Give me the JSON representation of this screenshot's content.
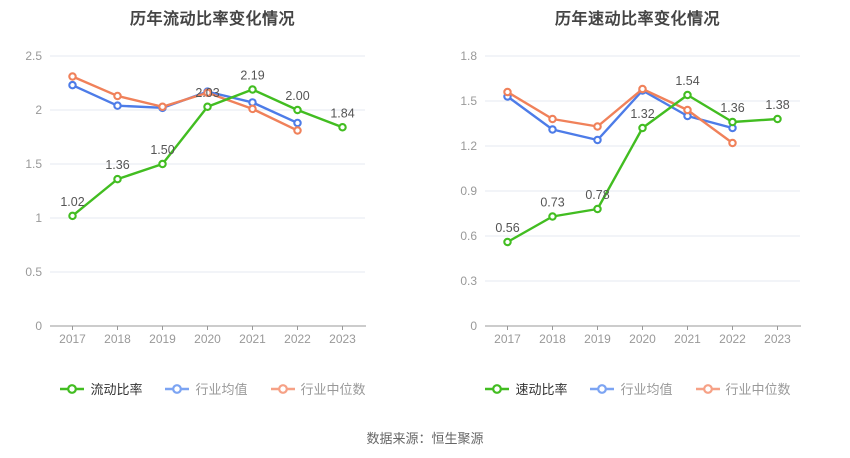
{
  "page": {
    "background": "#ffffff",
    "footer": "数据来源：恒生聚源"
  },
  "palette": {
    "green": "#42bd21",
    "blue": "#4d7ce8",
    "orange": "#f0815a",
    "legend_blue": "#7ca4f3",
    "legend_orange": "#f6a186",
    "grid": "#e4e8f1",
    "axis": "#999999",
    "tick_label": "#999999",
    "data_label": "#555555",
    "title": "#444444",
    "footer_text": "#666666",
    "legend_active_text": "#333333",
    "legend_muted_text": "#999999"
  },
  "chart_data": [
    {
      "type": "line",
      "title": "历年流动比率变化情况",
      "categories": [
        "2017",
        "2018",
        "2019",
        "2020",
        "2021",
        "2022",
        "2023"
      ],
      "ylim": [
        0,
        2.5
      ],
      "yticks": [
        {
          "value": 0,
          "label": "0"
        },
        {
          "value": 0.5,
          "label": "0.5"
        },
        {
          "value": 1,
          "label": "1"
        },
        {
          "value": 1.5,
          "label": "1.5"
        },
        {
          "value": 2,
          "label": "2"
        },
        {
          "value": 2.5,
          "label": "2.5"
        }
      ],
      "grid": "horizontal",
      "legend_position": "bottom",
      "series": [
        {
          "name": "流动比率",
          "color_key": "green",
          "legend_color_key": "green",
          "legend_text": "active",
          "z": 3,
          "values": [
            1.02,
            1.36,
            1.5,
            2.03,
            2.19,
            2.0,
            1.84
          ],
          "labels": [
            "1.02",
            "1.36",
            "1.50",
            "2.03",
            "2.19",
            "2.00",
            "1.84"
          ]
        },
        {
          "name": "行业均值",
          "color_key": "blue",
          "legend_color_key": "legend_blue",
          "legend_text": "muted",
          "z": 1,
          "values": [
            2.23,
            2.04,
            2.02,
            2.17,
            2.07,
            1.88
          ]
        },
        {
          "name": "行业中位数",
          "color_key": "orange",
          "legend_color_key": "legend_orange",
          "legend_text": "muted",
          "z": 2,
          "values": [
            2.31,
            2.13,
            2.03,
            2.16,
            2.01,
            1.81
          ]
        }
      ]
    },
    {
      "type": "line",
      "title": "历年速动比率变化情况",
      "categories": [
        "2017",
        "2018",
        "2019",
        "2020",
        "2021",
        "2022",
        "2023"
      ],
      "ylim": [
        0,
        1.8
      ],
      "yticks": [
        {
          "value": 0,
          "label": "0"
        },
        {
          "value": 0.3,
          "label": "0.3"
        },
        {
          "value": 0.6,
          "label": "0.6"
        },
        {
          "value": 0.9,
          "label": "0.9"
        },
        {
          "value": 1.2,
          "label": "1.2"
        },
        {
          "value": 1.5,
          "label": "1.5"
        },
        {
          "value": 1.8,
          "label": "1.8"
        }
      ],
      "grid": "horizontal",
      "legend_position": "bottom",
      "series": [
        {
          "name": "速动比率",
          "color_key": "green",
          "legend_color_key": "green",
          "legend_text": "active",
          "z": 3,
          "values": [
            0.56,
            0.73,
            0.78,
            1.32,
            1.54,
            1.36,
            1.38
          ],
          "labels": [
            "0.56",
            "0.73",
            "0.78",
            "1.32",
            "1.54",
            "1.36",
            "1.38"
          ]
        },
        {
          "name": "行业均值",
          "color_key": "blue",
          "legend_color_key": "legend_blue",
          "legend_text": "muted",
          "z": 1,
          "values": [
            1.53,
            1.31,
            1.24,
            1.57,
            1.4,
            1.32
          ]
        },
        {
          "name": "行业中位数",
          "color_key": "orange",
          "legend_color_key": "legend_orange",
          "legend_text": "muted",
          "z": 2,
          "values": [
            1.56,
            1.38,
            1.33,
            1.58,
            1.44,
            1.22
          ]
        }
      ]
    }
  ]
}
